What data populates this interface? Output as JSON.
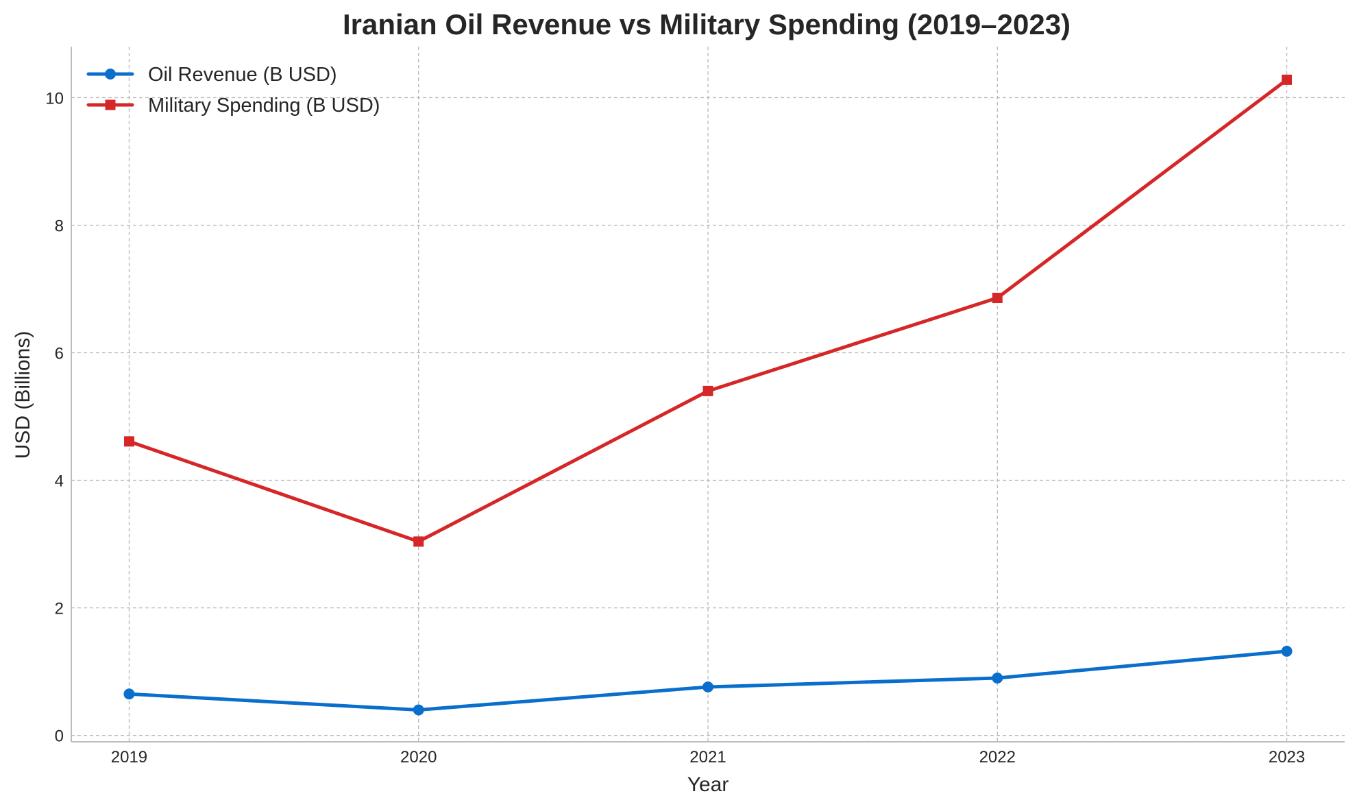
{
  "chart_data": {
    "type": "line",
    "title": "Iranian Oil Revenue vs Military Spending (2019–2023)",
    "xlabel": "Year",
    "ylabel": "USD (Billions)",
    "x": [
      "2019",
      "2020",
      "2021",
      "2022",
      "2023"
    ],
    "xlim": [
      -0.2,
      4.2
    ],
    "ylim": [
      -0.1,
      10.8
    ],
    "yticks": [
      0,
      2,
      4,
      6,
      8,
      10
    ],
    "grid": true,
    "legend_position": "top-left",
    "series": [
      {
        "name": "Oil Revenue (B USD)",
        "values": [
          0.65,
          0.4,
          0.76,
          0.9,
          1.32
        ],
        "color": "#0a6fcc",
        "marker": "circle"
      },
      {
        "name": "Military Spending (B USD)",
        "values": [
          4.61,
          3.04,
          5.4,
          6.86,
          10.28
        ],
        "color": "#d62728",
        "marker": "square"
      }
    ]
  }
}
